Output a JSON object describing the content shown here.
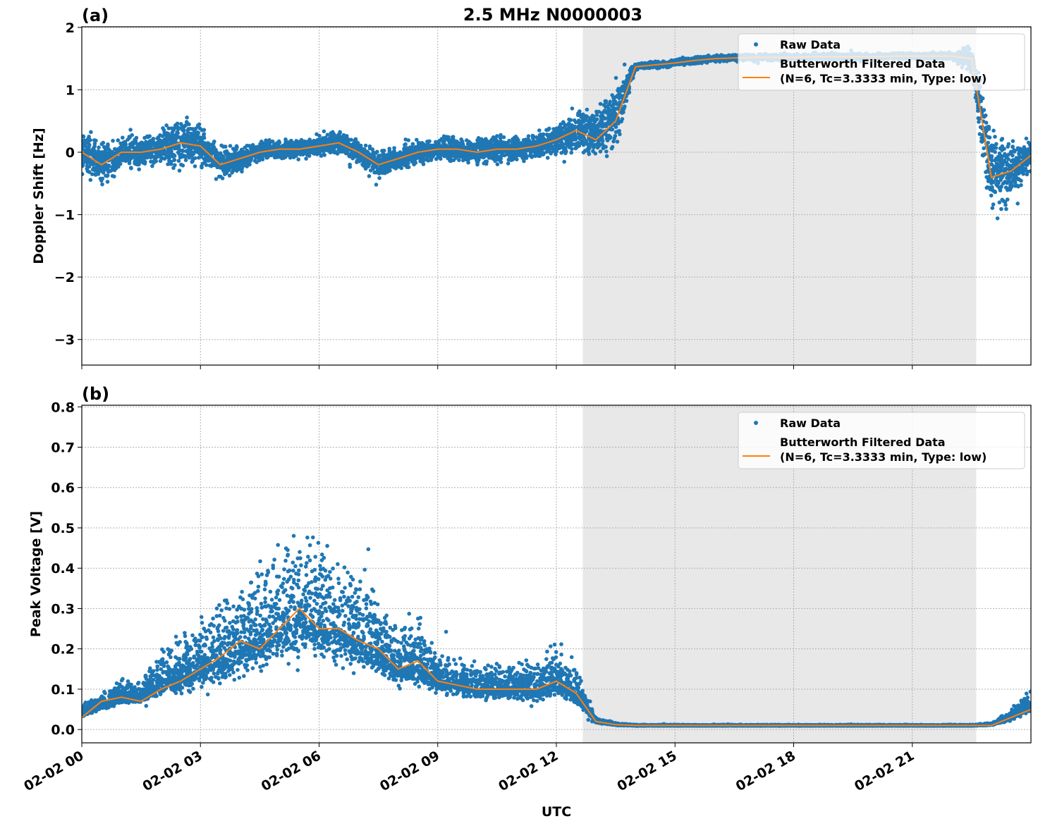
{
  "title": "2.5 MHz N0000003",
  "xlabel": "UTC",
  "colors": {
    "raw": "#1f77b4",
    "filtered": "#ff7f0e",
    "span": "#e8e8e8",
    "grid": "#b0b0b0"
  },
  "shaded_span": {
    "start": "02-02 12:40",
    "end": "02-02 22:37"
  },
  "xlim": [
    "02-02 00:00",
    "02-03 00:00"
  ],
  "xticks": [
    "02-02 00",
    "02-02 03",
    "02-02 06",
    "02-02 09",
    "02-02 12",
    "02-02 15",
    "02-02 18",
    "02-02 21"
  ],
  "chart_data": [
    {
      "type": "scatter",
      "panel_label": "(a)",
      "ylabel": "Doppler Shift [Hz]",
      "ylim": [
        -3.41,
        2.01
      ],
      "grid": true,
      "legend_placement": "upper right",
      "yticks": {
        "values": [
          2,
          1,
          0,
          -1,
          -2,
          -3
        ],
        "labels": [
          "2",
          "1",
          "0",
          "−1",
          "−2",
          "−3"
        ]
      },
      "x_hours_utc": [
        0,
        0.5,
        1,
        1.5,
        2,
        2.5,
        3,
        3.5,
        4,
        4.5,
        5,
        5.5,
        6,
        6.5,
        7,
        7.5,
        8,
        8.5,
        9,
        9.5,
        10,
        10.5,
        11,
        11.5,
        12,
        12.5,
        13,
        13.5,
        14,
        14.5,
        15,
        15.5,
        16,
        16.5,
        17,
        17.5,
        18,
        18.5,
        19,
        19.5,
        20,
        20.5,
        21,
        21.5,
        22,
        22.5,
        23,
        23.5,
        24
      ],
      "series": [
        {
          "name": "Raw Data",
          "kind": "scatter",
          "approx_center": [
            0,
            -0.2,
            0,
            0,
            0.05,
            0.2,
            0.1,
            -0.2,
            -0.1,
            0,
            0.05,
            0.05,
            0.1,
            0.15,
            0,
            -0.2,
            -0.1,
            0,
            0.05,
            0.05,
            0,
            0.05,
            0.05,
            0.1,
            0.2,
            0.35,
            0.3,
            0.6,
            1.37,
            1.4,
            1.43,
            1.47,
            1.5,
            1.52,
            1.52,
            1.52,
            1.52,
            1.53,
            1.53,
            1.53,
            1.53,
            1.54,
            1.54,
            1.54,
            1.54,
            1.5,
            -0.4,
            -0.3,
            -0.05
          ],
          "approx_spread": [
            0.5,
            0.45,
            0.3,
            0.35,
            0.3,
            0.6,
            0.4,
            0.35,
            0.25,
            0.2,
            0.2,
            0.2,
            0.2,
            0.25,
            0.25,
            0.3,
            0.25,
            0.25,
            0.25,
            0.25,
            0.25,
            0.3,
            0.25,
            0.25,
            0.3,
            0.45,
            0.5,
            0.7,
            0.08,
            0.07,
            0.07,
            0.07,
            0.07,
            0.07,
            0.07,
            0.07,
            0.07,
            0.07,
            0.07,
            0.07,
            0.07,
            0.07,
            0.07,
            0.07,
            0.07,
            0.3,
            1.0,
            0.6,
            0.3
          ]
        },
        {
          "name": "Butterworth Filtered Data\n(N=6, Tc=3.3333 min, Type: low)",
          "kind": "line",
          "values": [
            0,
            -0.2,
            0,
            0,
            0.05,
            0.15,
            0.1,
            -0.2,
            -0.1,
            0,
            0.05,
            0.05,
            0.1,
            0.15,
            0,
            -0.2,
            -0.1,
            0,
            0.05,
            0.05,
            0,
            0.05,
            0.05,
            0.1,
            0.2,
            0.35,
            0.2,
            0.5,
            1.37,
            1.4,
            1.43,
            1.47,
            1.5,
            1.51,
            1.52,
            1.52,
            1.52,
            1.53,
            1.53,
            1.53,
            1.53,
            1.54,
            1.54,
            1.54,
            1.54,
            1.5,
            -0.4,
            -0.3,
            -0.05
          ]
        }
      ]
    },
    {
      "type": "scatter",
      "panel_label": "(b)",
      "ylabel": "Peak Voltage [V]",
      "ylim": [
        -0.033,
        0.804
      ],
      "grid": true,
      "legend_placement": "upper right",
      "yticks": {
        "values": [
          0.0,
          0.1,
          0.2,
          0.3,
          0.4,
          0.5,
          0.6,
          0.7,
          0.8
        ],
        "labels": [
          "0.0",
          "0.1",
          "0.2",
          "0.3",
          "0.4",
          "0.5",
          "0.6",
          "0.7",
          "0.8"
        ]
      },
      "x_hours_utc": [
        0,
        0.5,
        1,
        1.5,
        2,
        2.5,
        3,
        3.5,
        4,
        4.5,
        5,
        5.5,
        6,
        6.5,
        7,
        7.5,
        8,
        8.5,
        9,
        9.5,
        10,
        10.5,
        11,
        11.5,
        12,
        12.5,
        13,
        13.5,
        14,
        14.5,
        15,
        15.5,
        16,
        16.5,
        17,
        17.5,
        18,
        18.5,
        19,
        19.5,
        20,
        20.5,
        21,
        21.5,
        22,
        22.5,
        23,
        23.5,
        24
      ],
      "series": [
        {
          "name": "Raw Data",
          "kind": "scatter",
          "approx_center": [
            0.04,
            0.06,
            0.08,
            0.08,
            0.12,
            0.13,
            0.15,
            0.17,
            0.2,
            0.22,
            0.25,
            0.28,
            0.25,
            0.24,
            0.22,
            0.19,
            0.15,
            0.16,
            0.12,
            0.11,
            0.1,
            0.1,
            0.1,
            0.1,
            0.12,
            0.09,
            0.02,
            0.012,
            0.01,
            0.01,
            0.01,
            0.01,
            0.01,
            0.01,
            0.01,
            0.01,
            0.01,
            0.01,
            0.01,
            0.01,
            0.01,
            0.01,
            0.01,
            0.01,
            0.01,
            0.01,
            0.012,
            0.03,
            0.06
          ],
          "approx_spread": [
            0.02,
            0.03,
            0.04,
            0.04,
            0.08,
            0.1,
            0.12,
            0.13,
            0.17,
            0.18,
            0.2,
            0.22,
            0.2,
            0.18,
            0.18,
            0.14,
            0.1,
            0.12,
            0.07,
            0.06,
            0.06,
            0.06,
            0.06,
            0.07,
            0.09,
            0.06,
            0.01,
            0.004,
            0.002,
            0.002,
            0.002,
            0.002,
            0.002,
            0.002,
            0.002,
            0.002,
            0.002,
            0.002,
            0.002,
            0.002,
            0.002,
            0.002,
            0.002,
            0.002,
            0.002,
            0.002,
            0.004,
            0.02,
            0.04
          ]
        },
        {
          "name": "Butterworth Filtered Data\n(N=6, Tc=3.3333 min, Type: low)",
          "kind": "line",
          "values": [
            0.03,
            0.07,
            0.08,
            0.07,
            0.1,
            0.12,
            0.15,
            0.18,
            0.22,
            0.2,
            0.25,
            0.3,
            0.25,
            0.25,
            0.22,
            0.2,
            0.15,
            0.17,
            0.12,
            0.11,
            0.1,
            0.1,
            0.1,
            0.1,
            0.12,
            0.09,
            0.02,
            0.012,
            0.01,
            0.01,
            0.01,
            0.01,
            0.01,
            0.01,
            0.01,
            0.01,
            0.01,
            0.01,
            0.01,
            0.01,
            0.01,
            0.01,
            0.01,
            0.01,
            0.01,
            0.01,
            0.01,
            0.03,
            0.05
          ]
        }
      ]
    }
  ]
}
